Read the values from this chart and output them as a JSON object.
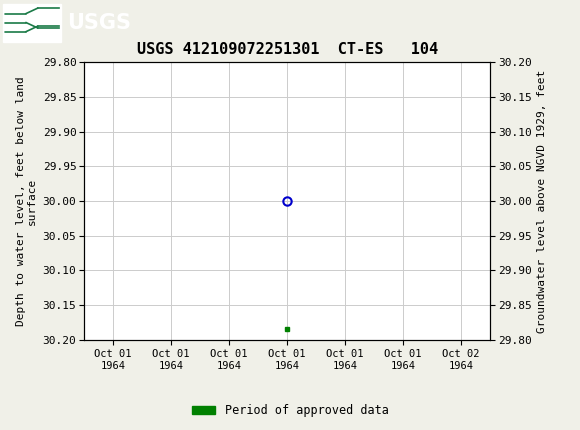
{
  "title": "USGS 412109072251301  CT-ES   104",
  "ylabel_left": "Depth to water level, feet below land\nsurface",
  "ylabel_right": "Groundwater level above NGVD 1929, feet",
  "ylim_left": [
    30.2,
    29.8
  ],
  "ylim_right": [
    29.8,
    30.2
  ],
  "yticks_left": [
    29.8,
    29.85,
    29.9,
    29.95,
    30.0,
    30.05,
    30.1,
    30.15,
    30.2
  ],
  "yticks_right": [
    30.2,
    30.15,
    30.1,
    30.05,
    30.0,
    29.95,
    29.9,
    29.85,
    29.8
  ],
  "xtick_labels": [
    "Oct 01\n1964",
    "Oct 01\n1964",
    "Oct 01\n1964",
    "Oct 01\n1964",
    "Oct 01\n1964",
    "Oct 01\n1964",
    "Oct 02\n1964"
  ],
  "x_positions": [
    0,
    1,
    2,
    3,
    4,
    5,
    6
  ],
  "xlim": [
    -0.5,
    6.5
  ],
  "data_point_x": 3,
  "data_point_y": 30.0,
  "green_square_x": 3,
  "green_square_y": 30.185,
  "marker_color": "#0000cc",
  "green_color": "#008000",
  "header_color": "#1a7a47",
  "background_color": "#f0f0e8",
  "plot_bg_color": "#ffffff",
  "grid_color": "#cccccc",
  "legend_label": "Period of approved data",
  "font_family": "monospace",
  "title_fontsize": 11,
  "tick_fontsize": 8,
  "label_fontsize": 8
}
